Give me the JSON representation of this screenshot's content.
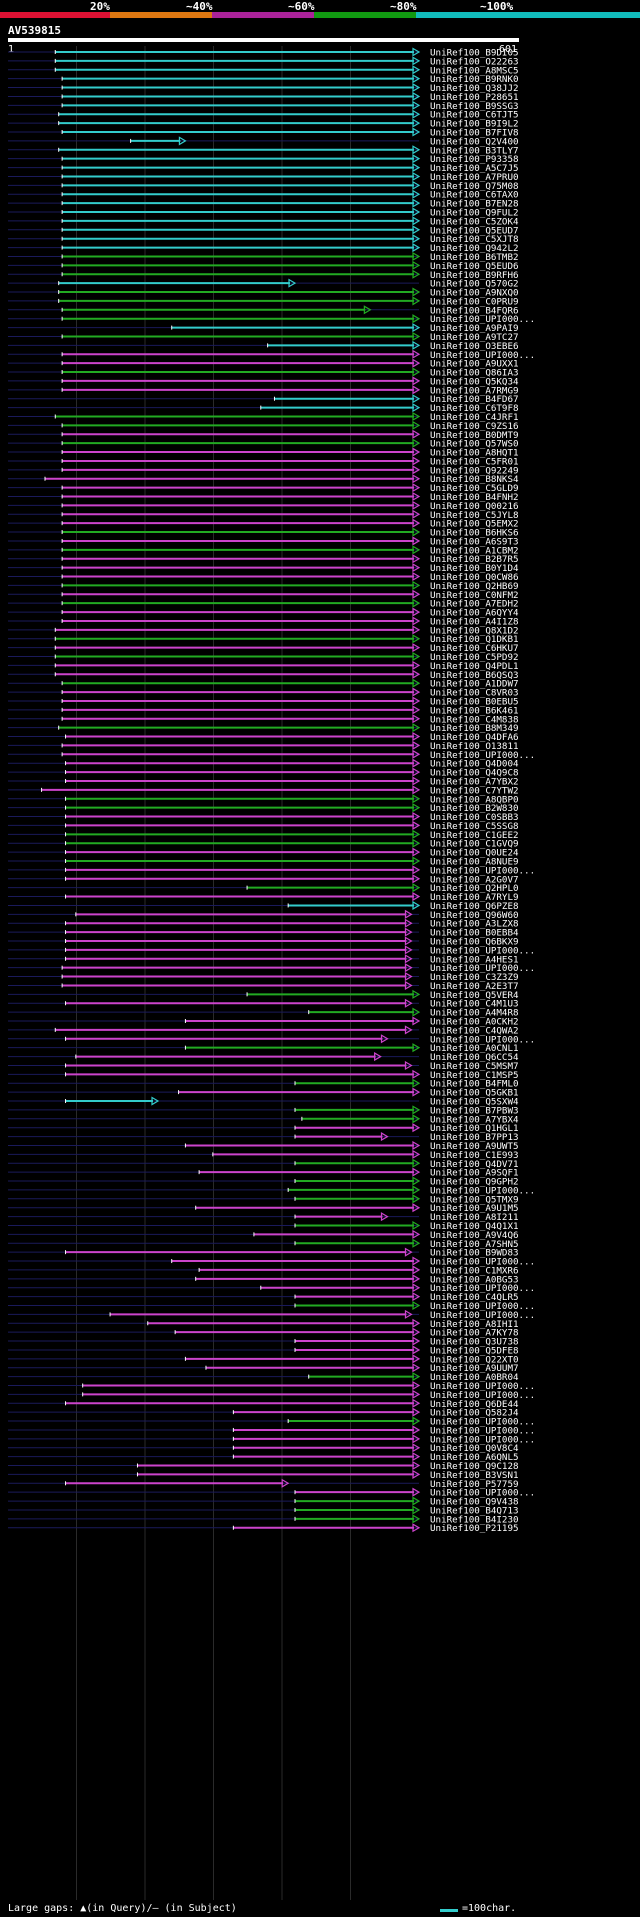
{
  "legend": {
    "labels": [
      "20%",
      "~40%",
      "~60%",
      "~80%",
      "~100%"
    ],
    "colors": [
      "#dd1133",
      "#dd7711",
      "#aa2299",
      "#119911",
      "#11bbbb"
    ]
  },
  "query": {
    "id": "AV539815",
    "start_label": "1",
    "end_label": "601"
  },
  "footer": {
    "left": "Large gaps: ▲(in Query)/– (in Subject)",
    "right": "=100char."
  },
  "chart_data": {
    "type": "alignment",
    "title": "AV539815",
    "query_length": 601,
    "colors": {
      "cyan": "#33cccc",
      "green": "#22aa22",
      "magenta": "#cc44cc"
    },
    "hits": [
      {
        "id": "UniRef100_B9DI05",
        "s": 70,
        "e": 601,
        "c": "cyan"
      },
      {
        "id": "UniRef100_O22263",
        "s": 70,
        "e": 601,
        "c": "cyan"
      },
      {
        "id": "UniRef100_A8MSC5",
        "s": 70,
        "e": 601,
        "c": "cyan"
      },
      {
        "id": "UniRef100_B9RNK0",
        "s": 80,
        "e": 601,
        "c": "cyan"
      },
      {
        "id": "UniRef100_Q38JJ2",
        "s": 80,
        "e": 601,
        "c": "cyan"
      },
      {
        "id": "UniRef100_P28651",
        "s": 80,
        "e": 601,
        "c": "cyan"
      },
      {
        "id": "UniRef100_B9SSG3",
        "s": 80,
        "e": 601,
        "c": "cyan"
      },
      {
        "id": "UniRef100_C6TJT5",
        "s": 75,
        "e": 601,
        "c": "cyan"
      },
      {
        "id": "UniRef100_B9I9L2",
        "s": 75,
        "e": 601,
        "c": "cyan"
      },
      {
        "id": "UniRef100_B7FIV8",
        "s": 80,
        "e": 601,
        "c": "cyan"
      },
      {
        "id": "UniRef100_Q2V400",
        "s": 180,
        "e": 260,
        "c": "cyan"
      },
      {
        "id": "UniRef100_B3TLY7",
        "s": 75,
        "e": 601,
        "c": "cyan"
      },
      {
        "id": "UniRef100_P93358",
        "s": 80,
        "e": 601,
        "c": "cyan"
      },
      {
        "id": "UniRef100_A5C7J5",
        "s": 80,
        "e": 601,
        "c": "cyan"
      },
      {
        "id": "UniRef100_A7PRU0",
        "s": 80,
        "e": 601,
        "c": "cyan"
      },
      {
        "id": "UniRef100_Q75M08",
        "s": 80,
        "e": 601,
        "c": "cyan"
      },
      {
        "id": "UniRef100_C6TAX0",
        "s": 80,
        "e": 601,
        "c": "cyan"
      },
      {
        "id": "UniRef100_B7EN28",
        "s": 80,
        "e": 601,
        "c": "cyan"
      },
      {
        "id": "UniRef100_Q9FUL2",
        "s": 80,
        "e": 601,
        "c": "cyan"
      },
      {
        "id": "UniRef100_C5ZOK4",
        "s": 80,
        "e": 601,
        "c": "cyan"
      },
      {
        "id": "UniRef100_Q5EUD7",
        "s": 80,
        "e": 601,
        "c": "cyan"
      },
      {
        "id": "UniRef100_C5XJT8",
        "s": 80,
        "e": 601,
        "c": "cyan"
      },
      {
        "id": "UniRef100_Q942L2",
        "s": 80,
        "e": 601,
        "c": "cyan"
      },
      {
        "id": "UniRef100_B6TMB2",
        "s": 80,
        "e": 601,
        "c": "green"
      },
      {
        "id": "UniRef100_Q5EUD6",
        "s": 80,
        "e": 601,
        "c": "green"
      },
      {
        "id": "UniRef100_B9RFH6",
        "s": 80,
        "e": 601,
        "c": "green"
      },
      {
        "id": "UniRef100_Q570G2",
        "s": 75,
        "e": 420,
        "c": "cyan"
      },
      {
        "id": "UniRef100_A9NXQ0",
        "s": 75,
        "e": 601,
        "c": "green"
      },
      {
        "id": "UniRef100_C0PRU9",
        "s": 75,
        "e": 601,
        "c": "green"
      },
      {
        "id": "UniRef100_B4FQR6",
        "s": 80,
        "e": 530,
        "c": "green"
      },
      {
        "id": "UniRef100_UPI000...",
        "s": 80,
        "e": 601,
        "c": "green"
      },
      {
        "id": "UniRef100_A9PAI9",
        "s": 240,
        "e": 601,
        "c": "cyan"
      },
      {
        "id": "UniRef100_A9TC27",
        "s": 80,
        "e": 601,
        "c": "green"
      },
      {
        "id": "UniRef100_O3EBE6",
        "s": 380,
        "e": 601,
        "c": "cyan"
      },
      {
        "id": "UniRef100_UPI000...",
        "s": 80,
        "e": 601,
        "c": "magenta"
      },
      {
        "id": "UniRef100_A9UXX1",
        "s": 80,
        "e": 601,
        "c": "magenta"
      },
      {
        "id": "UniRef100_Q86IA3",
        "s": 80,
        "e": 601,
        "c": "green"
      },
      {
        "id": "UniRef100_Q5KQ34",
        "s": 80,
        "e": 601,
        "c": "magenta"
      },
      {
        "id": "UniRef100_A7RMG9",
        "s": 80,
        "e": 601,
        "c": "magenta"
      },
      {
        "id": "UniRef100_B4FD67",
        "s": 390,
        "e": 601,
        "c": "cyan"
      },
      {
        "id": "UniRef100_C6T9F8",
        "s": 370,
        "e": 601,
        "c": "cyan"
      },
      {
        "id": "UniRef100_C4JRF1",
        "s": 70,
        "e": 601,
        "c": "green"
      },
      {
        "id": "UniRef100_C9ZS16",
        "s": 80,
        "e": 601,
        "c": "green"
      },
      {
        "id": "UniRef100_B0DMT9",
        "s": 80,
        "e": 601,
        "c": "magenta"
      },
      {
        "id": "UniRef100_Q57WS0",
        "s": 80,
        "e": 601,
        "c": "green"
      },
      {
        "id": "UniRef100_A8HQT1",
        "s": 80,
        "e": 601,
        "c": "magenta"
      },
      {
        "id": "UniRef100_C5FR01",
        "s": 80,
        "e": 601,
        "c": "magenta"
      },
      {
        "id": "UniRef100_Q92249",
        "s": 80,
        "e": 601,
        "c": "magenta"
      },
      {
        "id": "UniRef100_B8NKS4",
        "s": 55,
        "e": 601,
        "c": "magenta"
      },
      {
        "id": "UniRef100_C5GLD9",
        "s": 80,
        "e": 601,
        "c": "magenta"
      },
      {
        "id": "UniRef100_B4FNH2",
        "s": 80,
        "e": 601,
        "c": "magenta"
      },
      {
        "id": "UniRef100_Q00216",
        "s": 80,
        "e": 601,
        "c": "magenta"
      },
      {
        "id": "UniRef100_C5JYL8",
        "s": 80,
        "e": 601,
        "c": "magenta"
      },
      {
        "id": "UniRef100_Q5EMX2",
        "s": 80,
        "e": 601,
        "c": "magenta"
      },
      {
        "id": "UniRef100_B6HKS6",
        "s": 80,
        "e": 601,
        "c": "green"
      },
      {
        "id": "UniRef100_A6S9T3",
        "s": 80,
        "e": 601,
        "c": "magenta"
      },
      {
        "id": "UniRef100_A1CBM2",
        "s": 80,
        "e": 601,
        "c": "green"
      },
      {
        "id": "UniRef100_B2B7R5",
        "s": 80,
        "e": 601,
        "c": "magenta"
      },
      {
        "id": "UniRef100_B0Y1D4",
        "s": 80,
        "e": 601,
        "c": "magenta"
      },
      {
        "id": "UniRef100_Q0CW86",
        "s": 80,
        "e": 601,
        "c": "magenta"
      },
      {
        "id": "UniRef100_Q2HB69",
        "s": 80,
        "e": 601,
        "c": "green"
      },
      {
        "id": "UniRef100_C0NFM2",
        "s": 80,
        "e": 601,
        "c": "magenta"
      },
      {
        "id": "UniRef100_A7EDH2",
        "s": 80,
        "e": 601,
        "c": "green"
      },
      {
        "id": "UniRef100_A6QYY4",
        "s": 80,
        "e": 601,
        "c": "magenta"
      },
      {
        "id": "UniRef100_A4I1Z8",
        "s": 80,
        "e": 601,
        "c": "magenta"
      },
      {
        "id": "UniRef100_Q8X1D2",
        "s": 70,
        "e": 601,
        "c": "magenta"
      },
      {
        "id": "UniRef100_Q1DKB1",
        "s": 70,
        "e": 601,
        "c": "green"
      },
      {
        "id": "UniRef100_C6HKU7",
        "s": 70,
        "e": 601,
        "c": "magenta"
      },
      {
        "id": "UniRef100_C5PD92",
        "s": 70,
        "e": 601,
        "c": "green"
      },
      {
        "id": "UniRef100_Q4PDL1",
        "s": 70,
        "e": 601,
        "c": "magenta"
      },
      {
        "id": "UniRef100_B6QSQ3",
        "s": 70,
        "e": 601,
        "c": "magenta"
      },
      {
        "id": "UniRef100_A1DDW7",
        "s": 80,
        "e": 601,
        "c": "green"
      },
      {
        "id": "UniRef100_C8VR03",
        "s": 80,
        "e": 601,
        "c": "magenta"
      },
      {
        "id": "UniRef100_B0EBU5",
        "s": 80,
        "e": 601,
        "c": "magenta"
      },
      {
        "id": "UniRef100_B6K461",
        "s": 80,
        "e": 601,
        "c": "magenta"
      },
      {
        "id": "UniRef100_C4M838",
        "s": 80,
        "e": 601,
        "c": "magenta"
      },
      {
        "id": "UniRef100_B8M349",
        "s": 75,
        "e": 601,
        "c": "green"
      },
      {
        "id": "UniRef100_Q4DFA6",
        "s": 85,
        "e": 601,
        "c": "magenta"
      },
      {
        "id": "UniRef100_O13811",
        "s": 80,
        "e": 601,
        "c": "magenta"
      },
      {
        "id": "UniRef100_UPI000...",
        "s": 80,
        "e": 601,
        "c": "magenta"
      },
      {
        "id": "UniRef100_Q4D004",
        "s": 85,
        "e": 601,
        "c": "magenta"
      },
      {
        "id": "UniRef100_Q4Q9C8",
        "s": 85,
        "e": 601,
        "c": "magenta"
      },
      {
        "id": "UniRef100_A7YBX2",
        "s": 85,
        "e": 601,
        "c": "magenta"
      },
      {
        "id": "UniRef100_C7YTW2",
        "s": 50,
        "e": 601,
        "c": "magenta"
      },
      {
        "id": "UniRef100_A8QBP0",
        "s": 85,
        "e": 601,
        "c": "green"
      },
      {
        "id": "UniRef100_B2W830",
        "s": 85,
        "e": 601,
        "c": "green"
      },
      {
        "id": "UniRef100_C0SBB3",
        "s": 85,
        "e": 601,
        "c": "magenta"
      },
      {
        "id": "UniRef100_C5SSG8",
        "s": 85,
        "e": 601,
        "c": "magenta"
      },
      {
        "id": "UniRef100_C1GEE2",
        "s": 85,
        "e": 601,
        "c": "green"
      },
      {
        "id": "UniRef100_C1GVQ9",
        "s": 85,
        "e": 601,
        "c": "green"
      },
      {
        "id": "UniRef100_Q0UE24",
        "s": 85,
        "e": 601,
        "c": "magenta"
      },
      {
        "id": "UniRef100_A8NUE9",
        "s": 85,
        "e": 601,
        "c": "green"
      },
      {
        "id": "UniRef100_UPI000...",
        "s": 85,
        "e": 601,
        "c": "magenta"
      },
      {
        "id": "UniRef100_A2G0V7",
        "s": 85,
        "e": 601,
        "c": "magenta"
      },
      {
        "id": "UniRef100_Q2HPL0",
        "s": 350,
        "e": 601,
        "c": "green"
      },
      {
        "id": "UniRef100_A7RYL9",
        "s": 85,
        "e": 601,
        "c": "magenta"
      },
      {
        "id": "UniRef100_Q6PZE8",
        "s": 410,
        "e": 601,
        "c": "cyan"
      },
      {
        "id": "UniRef100_Q96W60",
        "s": 100,
        "e": 590,
        "c": "magenta"
      },
      {
        "id": "UniRef100_A3LZX8",
        "s": 85,
        "e": 590,
        "c": "magenta"
      },
      {
        "id": "UniRef100_B0EBB4",
        "s": 85,
        "e": 590,
        "c": "magenta"
      },
      {
        "id": "UniRef100_Q6BKX9",
        "s": 85,
        "e": 590,
        "c": "magenta"
      },
      {
        "id": "UniRef100_UPI000...",
        "s": 85,
        "e": 590,
        "c": "magenta"
      },
      {
        "id": "UniRef100_A4HES1",
        "s": 85,
        "e": 590,
        "c": "magenta"
      },
      {
        "id": "UniRef100_UPI000...",
        "s": 80,
        "e": 590,
        "c": "magenta"
      },
      {
        "id": "UniRef100_C3Z3Z9",
        "s": 80,
        "e": 590,
        "c": "magenta"
      },
      {
        "id": "UniRef100_A2E3T7",
        "s": 80,
        "e": 590,
        "c": "magenta"
      },
      {
        "id": "UniRef100_Q5VER4",
        "s": 350,
        "e": 601,
        "c": "green"
      },
      {
        "id": "UniRef100_C4M1U3",
        "s": 85,
        "e": 590,
        "c": "magenta"
      },
      {
        "id": "UniRef100_A4M4R8",
        "s": 440,
        "e": 601,
        "c": "green"
      },
      {
        "id": "UniRef100_A0CKH2",
        "s": 260,
        "e": 601,
        "c": "magenta"
      },
      {
        "id": "UniRef100_C4QWA2",
        "s": 70,
        "e": 590,
        "c": "magenta"
      },
      {
        "id": "UniRef100_UPI000...",
        "s": 85,
        "e": 555,
        "c": "magenta"
      },
      {
        "id": "UniRef100_A0CNL1",
        "s": 260,
        "e": 601,
        "c": "green"
      },
      {
        "id": "UniRef100_Q6CC54",
        "s": 100,
        "e": 545,
        "c": "magenta"
      },
      {
        "id": "UniRef100_C5MSM7",
        "s": 85,
        "e": 590,
        "c": "magenta"
      },
      {
        "id": "UniRef100_C1MSP5",
        "s": 85,
        "e": 601,
        "c": "magenta"
      },
      {
        "id": "UniRef100_B4FML0",
        "s": 420,
        "e": 601,
        "c": "green"
      },
      {
        "id": "UniRef100_Q5GKB1",
        "s": 250,
        "e": 601,
        "c": "magenta"
      },
      {
        "id": "UniRef100_Q5SXW4",
        "s": 85,
        "e": 220,
        "c": "cyan"
      },
      {
        "id": "UniRef100_B7PBW3",
        "s": 420,
        "e": 601,
        "c": "green"
      },
      {
        "id": "UniRef100_A7YBX4",
        "s": 430,
        "e": 601,
        "c": "green"
      },
      {
        "id": "UniRef100_Q1HGL1",
        "s": 420,
        "e": 601,
        "c": "magenta"
      },
      {
        "id": "UniRef100_B7PP13",
        "s": 420,
        "e": 555,
        "c": "magenta"
      },
      {
        "id": "UniRef100_A9UWT5",
        "s": 260,
        "e": 601,
        "c": "magenta"
      },
      {
        "id": "UniRef100_C1E993",
        "s": 300,
        "e": 601,
        "c": "magenta"
      },
      {
        "id": "UniRef100_Q4DV71",
        "s": 420,
        "e": 601,
        "c": "green"
      },
      {
        "id": "UniRef100_A9SQF1",
        "s": 280,
        "e": 601,
        "c": "magenta"
      },
      {
        "id": "UniRef100_Q9GPH2",
        "s": 420,
        "e": 601,
        "c": "green"
      },
      {
        "id": "UniRef100_UPI000...",
        "s": 410,
        "e": 601,
        "c": "green"
      },
      {
        "id": "UniRef100_Q5TMX9",
        "s": 420,
        "e": 601,
        "c": "green"
      },
      {
        "id": "UniRef100_A9U1M5",
        "s": 275,
        "e": 601,
        "c": "magenta"
      },
      {
        "id": "UniRef100_A8I211",
        "s": 420,
        "e": 555,
        "c": "magenta"
      },
      {
        "id": "UniRef100_Q4Q1X1",
        "s": 420,
        "e": 601,
        "c": "green"
      },
      {
        "id": "UniRef100_A9V4Q6",
        "s": 360,
        "e": 601,
        "c": "magenta"
      },
      {
        "id": "UniRef100_A7SHN5",
        "s": 420,
        "e": 601,
        "c": "green"
      },
      {
        "id": "UniRef100_B9WD83",
        "s": 85,
        "e": 590,
        "c": "magenta"
      },
      {
        "id": "UniRef100_UPI000...",
        "s": 240,
        "e": 601,
        "c": "magenta"
      },
      {
        "id": "UniRef100_C1MXR6",
        "s": 280,
        "e": 601,
        "c": "magenta"
      },
      {
        "id": "UniRef100_A0BG53",
        "s": 275,
        "e": 601,
        "c": "magenta"
      },
      {
        "id": "UniRef100_UPI000...",
        "s": 370,
        "e": 601,
        "c": "magenta"
      },
      {
        "id": "UniRef100_C4QLR5",
        "s": 420,
        "e": 601,
        "c": "magenta"
      },
      {
        "id": "UniRef100_UPI000...",
        "s": 420,
        "e": 601,
        "c": "green"
      },
      {
        "id": "UniRef100_UPI000...",
        "s": 150,
        "e": 590,
        "c": "magenta"
      },
      {
        "id": "UniRef100_A8IHI1",
        "s": 205,
        "e": 601,
        "c": "magenta"
      },
      {
        "id": "UniRef100_A7KY78",
        "s": 245,
        "e": 601,
        "c": "magenta"
      },
      {
        "id": "UniRef100_Q3U738",
        "s": 420,
        "e": 601,
        "c": "magenta"
      },
      {
        "id": "UniRef100_Q5DFE8",
        "s": 420,
        "e": 601,
        "c": "magenta"
      },
      {
        "id": "UniRef100_Q22XT0",
        "s": 260,
        "e": 601,
        "c": "magenta"
      },
      {
        "id": "UniRef100_A9UUM7",
        "s": 290,
        "e": 601,
        "c": "magenta"
      },
      {
        "id": "UniRef100_A0BR04",
        "s": 440,
        "e": 601,
        "c": "green"
      },
      {
        "id": "UniRef100_UPI000...",
        "s": 110,
        "e": 601,
        "c": "magenta"
      },
      {
        "id": "UniRef100_UPI000...",
        "s": 110,
        "e": 601,
        "c": "magenta"
      },
      {
        "id": "UniRef100_Q6DE44",
        "s": 85,
        "e": 601,
        "c": "magenta"
      },
      {
        "id": "UniRef100_Q582J4",
        "s": 330,
        "e": 601,
        "c": "magenta"
      },
      {
        "id": "UniRef100_UPI000...",
        "s": 410,
        "e": 601,
        "c": "green"
      },
      {
        "id": "UniRef100_UPI000...",
        "s": 330,
        "e": 601,
        "c": "magenta"
      },
      {
        "id": "UniRef100_UPI000...",
        "s": 330,
        "e": 601,
        "c": "magenta"
      },
      {
        "id": "UniRef100_Q0V8C4",
        "s": 330,
        "e": 601,
        "c": "magenta"
      },
      {
        "id": "UniRef100_A6QNL5",
        "s": 330,
        "e": 601,
        "c": "magenta"
      },
      {
        "id": "UniRef100_Q9C128",
        "s": 190,
        "e": 601,
        "c": "magenta"
      },
      {
        "id": "UniRef100_B3VSN1",
        "s": 190,
        "e": 601,
        "c": "magenta"
      },
      {
        "id": "UniRef100_P57759",
        "s": 85,
        "e": 410,
        "c": "magenta"
      },
      {
        "id": "UniRef100_UPI000...",
        "s": 420,
        "e": 601,
        "c": "magenta"
      },
      {
        "id": "UniRef100_Q9V438",
        "s": 420,
        "e": 601,
        "c": "green"
      },
      {
        "id": "UniRef100_B4Q713",
        "s": 420,
        "e": 601,
        "c": "green"
      },
      {
        "id": "UniRef100_B4I230",
        "s": 420,
        "e": 601,
        "c": "green"
      },
      {
        "id": "UniRef100_P21195",
        "s": 330,
        "e": 601,
        "c": "magenta"
      }
    ]
  }
}
